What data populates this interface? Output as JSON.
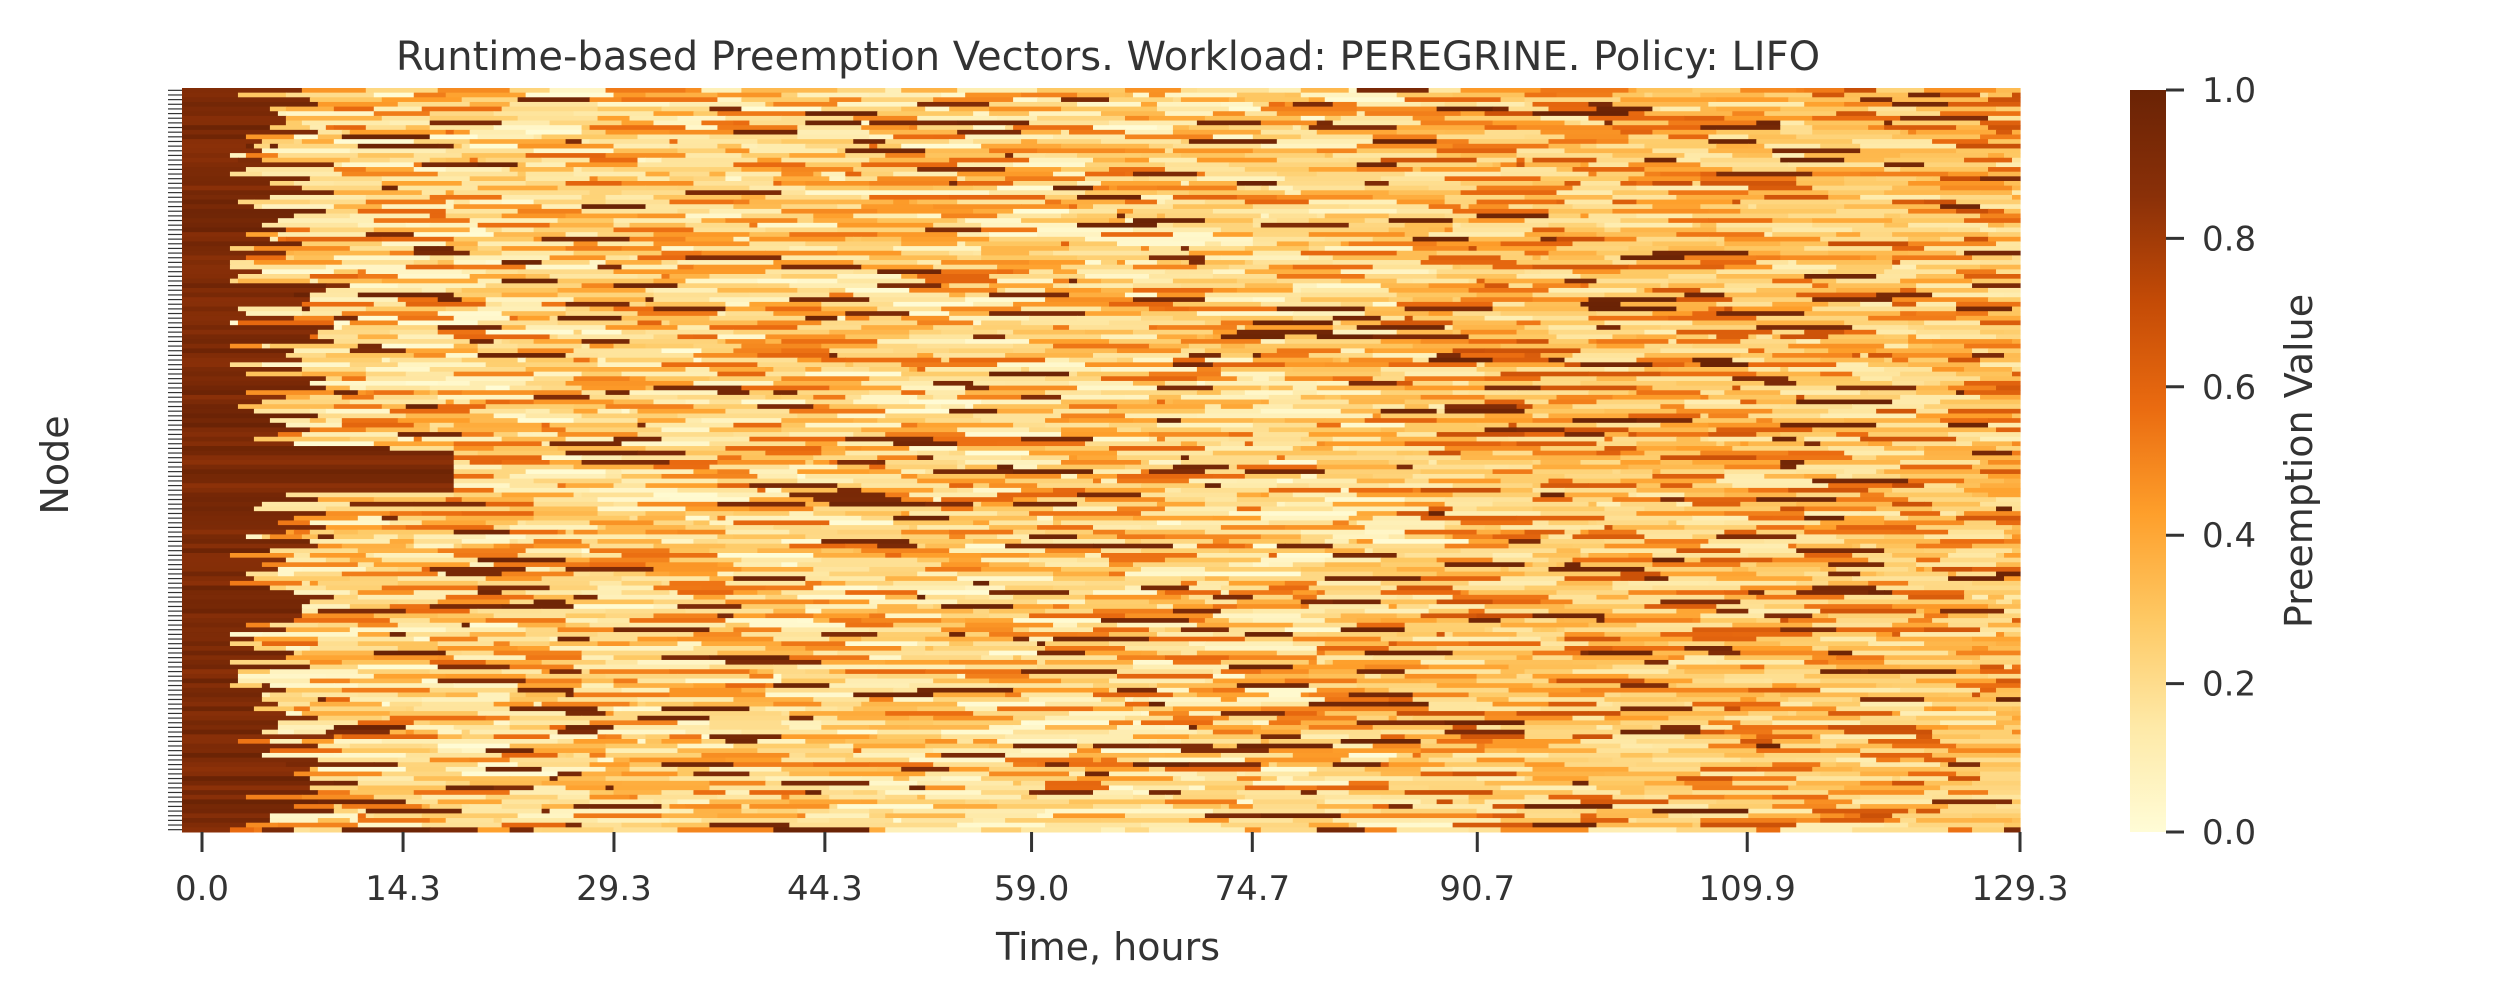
{
  "chart_data": {
    "type": "heatmap",
    "title": "Runtime-based Preemption Vectors. Workload: PEREGRINE. Policy: LIFO",
    "xlabel": "Time, hours",
    "ylabel": "Node",
    "x_ticks": [
      0.0,
      14.3,
      29.3,
      44.3,
      59.0,
      74.7,
      90.7,
      109.9,
      129.3
    ],
    "x_tick_labels": [
      "0.0",
      "14.3",
      "29.3",
      "44.3",
      "59.0",
      "74.7",
      "90.7",
      "109.9",
      "129.3"
    ],
    "xlim": [
      0.0,
      129.3
    ],
    "node_count": 160,
    "colorbar": {
      "label": "Preemption Value",
      "min": 0.0,
      "max": 1.0,
      "ticks": [
        0.0,
        0.2,
        0.4,
        0.6,
        0.8,
        1.0
      ],
      "tick_labels": [
        "0.0",
        "0.2",
        "0.4",
        "0.6",
        "0.8",
        "1.0"
      ],
      "colormap": [
        "#fffcd6",
        "#fee9a7",
        "#fec964",
        "#fe9f2b",
        "#ea6b10",
        "#c44b06",
        "#8a3008",
        "#6a2305"
      ]
    },
    "value_pattern": "high preemption values (≈0.9–1.0) concentrated in the first ~10 hours for most nodes; mixed low-to-mid values (0.0–0.6) with scattered high streaks afterwards; denser mid values after 90 hours"
  }
}
